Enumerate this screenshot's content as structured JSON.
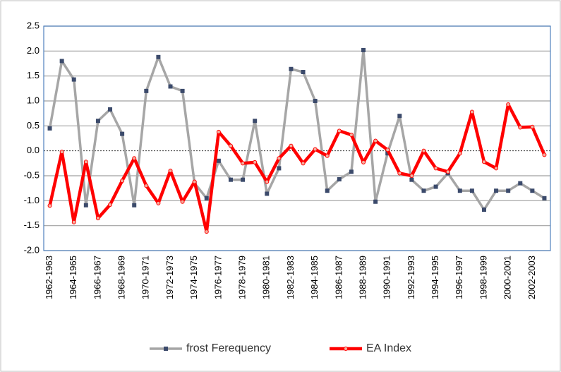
{
  "chart_data": {
    "type": "line",
    "categories": [
      "1962-1963",
      null,
      "1964-1965",
      null,
      "1966-1967",
      null,
      "1968-1969",
      null,
      "1970-1971",
      null,
      "1972-1973",
      null,
      "1974-1975",
      null,
      "1976-1977",
      null,
      "1978-1979",
      null,
      "1980-1981",
      null,
      "1982-1983",
      null,
      "1984-1985",
      null,
      "1986-1987",
      null,
      "1988-1989",
      null,
      "1990-1991",
      null,
      "1992-1993",
      null,
      "1994-1995",
      null,
      "1996-1997",
      null,
      "1998-1999",
      null,
      "2000-2001",
      null,
      "2002-2003",
      null
    ],
    "series": [
      {
        "name": "frost Ferequency",
        "color": "#a6a6a6",
        "marker_color": "#3b4a6b",
        "values": [
          0.45,
          1.8,
          1.43,
          -1.09,
          0.6,
          0.83,
          0.34,
          -1.09,
          1.2,
          1.88,
          1.29,
          1.2,
          -0.65,
          -0.95,
          -0.2,
          -0.58,
          -0.58,
          0.6,
          -0.86,
          -0.35,
          1.64,
          1.58,
          1.0,
          -0.8,
          -0.57,
          -0.42,
          2.02,
          -1.02,
          -0.05,
          0.7,
          -0.58,
          -0.8,
          -0.72,
          -0.45,
          -0.8,
          -0.8,
          -1.18,
          -0.8,
          -0.8,
          -0.65,
          -0.8,
          -0.95
        ]
      },
      {
        "name": "EA Index",
        "color": "#ff0000",
        "marker_color": "#f4b0a0",
        "values": [
          -1.1,
          -0.02,
          -1.43,
          -0.22,
          -1.35,
          -1.08,
          -0.6,
          -0.15,
          -0.7,
          -1.05,
          -0.4,
          -1.02,
          -0.62,
          -1.62,
          0.38,
          0.1,
          -0.25,
          -0.23,
          -0.62,
          -0.15,
          0.1,
          -0.25,
          0.03,
          -0.1,
          0.4,
          0.32,
          -0.23,
          0.2,
          0.02,
          -0.45,
          -0.5,
          0.0,
          -0.35,
          -0.42,
          -0.05,
          0.78,
          -0.22,
          -0.35,
          0.93,
          0.47,
          0.48,
          -0.08
        ]
      }
    ],
    "ylim": [
      -2.0,
      2.5
    ],
    "yticks": [
      {
        "value": -2,
        "label": "-2.0"
      },
      -1.5,
      {
        "value": -1,
        "label": "-1.0"
      },
      -0.5,
      {
        "value": 0,
        "label": "0.0"
      },
      0.5,
      {
        "value": 1,
        "label": "1.0"
      },
      1.5,
      {
        "value": 2,
        "label": "2.0"
      },
      2.5
    ],
    "grid": true,
    "legend": "bottom"
  }
}
